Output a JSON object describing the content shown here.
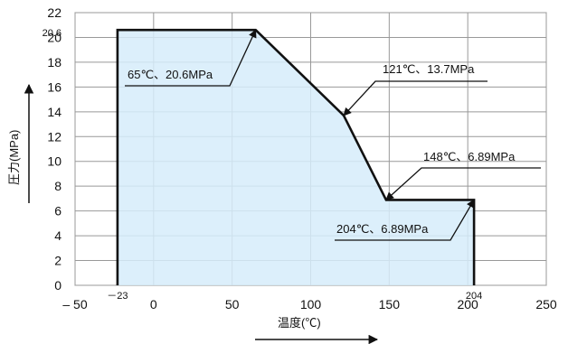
{
  "chart_data": {
    "type": "area",
    "xlabel": "温度(℃)",
    "ylabel": "圧力(MPa)",
    "xlim": [
      -50,
      250
    ],
    "ylim": [
      0,
      22
    ],
    "x_ticks": [
      {
        "value": -50,
        "label": "– 50"
      },
      {
        "value": 0,
        "label": "0"
      },
      {
        "value": 50,
        "label": "50"
      },
      {
        "value": 100,
        "label": "100"
      },
      {
        "value": 150,
        "label": "150"
      },
      {
        "value": 200,
        "label": "200"
      },
      {
        "value": 250,
        "label": "250"
      }
    ],
    "y_ticks": [
      0,
      2,
      4,
      6,
      8,
      10,
      12,
      14,
      16,
      18,
      20,
      22
    ],
    "special_x_labels": [
      {
        "value": -23,
        "label": "－23"
      },
      {
        "value": 204,
        "label": "204"
      }
    ],
    "special_y_labels": [
      {
        "value": 20.6,
        "label": "20.6"
      }
    ],
    "grid": true,
    "fill_color": "#d6ecfa",
    "line_color": "#111111",
    "background_color": "#ffffff",
    "points": [
      {
        "x": -23,
        "y": 0
      },
      {
        "x": -23,
        "y": 20.6
      },
      {
        "x": 65,
        "y": 20.6
      },
      {
        "x": 121,
        "y": 13.7
      },
      {
        "x": 148,
        "y": 6.89
      },
      {
        "x": 204,
        "y": 6.89
      },
      {
        "x": 204,
        "y": 0
      }
    ],
    "annotations": [
      {
        "text": "65℃、20.6MPa",
        "x": 65,
        "y": 20.6
      },
      {
        "text": "121℃、13.7MPa",
        "x": 121,
        "y": 13.7
      },
      {
        "text": "148℃、6.89MPa",
        "x": 148,
        "y": 6.89
      },
      {
        "text": "204℃、6.89MPa",
        "x": 204,
        "y": 6.89
      }
    ]
  }
}
